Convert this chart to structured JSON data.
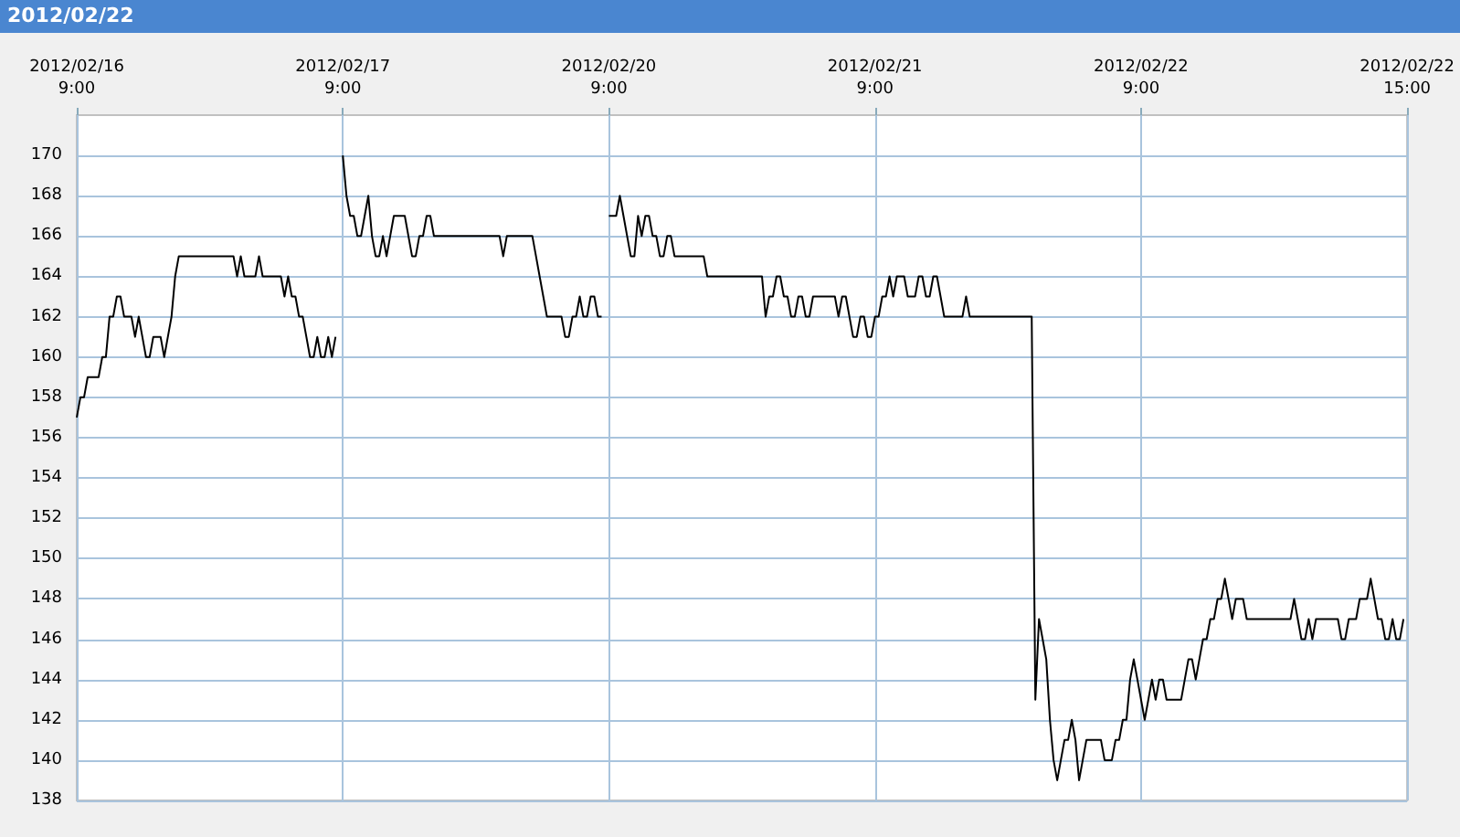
{
  "chart_data": {
    "type": "line",
    "title": "2012/02/22",
    "categories": [
      "2012/02/16\n9:00",
      null,
      null,
      null,
      null,
      null,
      null,
      null,
      null,
      null,
      null,
      null,
      null,
      null,
      null,
      null,
      null,
      null,
      null,
      null,
      null,
      null,
      null,
      null,
      null,
      null,
      null,
      null,
      null,
      null,
      null,
      null,
      null,
      null,
      null,
      null,
      null,
      null,
      null,
      null,
      null,
      null,
      null,
      null,
      null,
      null,
      null,
      null,
      null,
      null,
      null,
      null,
      null,
      null,
      null,
      null,
      null,
      null,
      null,
      null,
      null,
      null,
      null,
      null,
      null,
      null,
      null,
      null,
      null,
      null,
      null,
      null,
      null,
      "2012/02/17\n9:00",
      null,
      null,
      null,
      null,
      null,
      null,
      null,
      null,
      null,
      null,
      null,
      null,
      null,
      null,
      null,
      null,
      null,
      null,
      null,
      null,
      null,
      null,
      null,
      null,
      null,
      null,
      null,
      null,
      null,
      null,
      null,
      null,
      null,
      null,
      null,
      null,
      null,
      null,
      null,
      null,
      null,
      null,
      null,
      null,
      null,
      null,
      null,
      null,
      null,
      null,
      null,
      null,
      null,
      null,
      null,
      null,
      null,
      null,
      null,
      null,
      null,
      null,
      null,
      null,
      null,
      null,
      null,
      null,
      null,
      null,
      null,
      null,
      "2012/02/20\n9:00",
      null,
      null,
      null,
      null,
      null,
      null,
      null,
      null,
      null,
      null,
      null,
      null,
      null,
      null,
      null,
      null,
      null,
      null,
      null,
      null,
      null,
      null,
      null,
      null,
      null,
      null,
      null,
      null,
      null,
      null,
      null,
      null,
      null,
      null,
      null,
      null,
      null,
      null,
      null,
      null,
      null,
      null,
      null,
      null,
      null,
      null,
      null,
      null,
      null,
      null,
      null,
      null,
      null,
      null,
      null,
      null,
      null,
      null,
      null,
      null,
      null,
      null,
      null,
      null,
      null,
      null,
      null,
      null,
      null,
      null,
      null,
      null,
      "2012/02/21\n9:00",
      null,
      null,
      null,
      null,
      null,
      null,
      null,
      null,
      null,
      null,
      null,
      null,
      null,
      null,
      null,
      null,
      null,
      null,
      null,
      null,
      null,
      null,
      null,
      null,
      null,
      null,
      null,
      null,
      null,
      null,
      null,
      null,
      null,
      null,
      null,
      null,
      null,
      null,
      null,
      null,
      null,
      null,
      null,
      null,
      null,
      null,
      null,
      null,
      null,
      null,
      null,
      null,
      null,
      null,
      null,
      null,
      null,
      null,
      null,
      null,
      null,
      null,
      null,
      null,
      null,
      null,
      null,
      null,
      null,
      null,
      null,
      null,
      "2012/02/22\n9:00",
      null,
      null,
      null,
      null,
      null,
      null,
      null,
      null,
      null,
      null,
      null,
      null,
      null,
      null,
      null,
      null,
      null,
      null,
      null,
      null,
      null,
      null,
      null,
      null,
      null,
      null,
      null,
      null,
      null,
      null,
      null,
      null,
      null,
      null,
      null,
      null,
      null,
      null,
      null,
      null,
      null,
      null,
      null,
      null,
      null,
      null,
      null,
      null,
      null,
      null,
      null,
      null,
      null,
      null,
      null,
      null,
      null,
      null,
      null,
      null,
      null,
      null,
      null,
      null,
      null,
      null,
      null,
      null,
      null,
      null,
      null,
      null,
      "2012/02/22\n15:00"
    ],
    "ylim": [
      138,
      172
    ],
    "yticks": [
      138,
      140,
      142,
      144,
      146,
      148,
      150,
      152,
      154,
      156,
      158,
      160,
      162,
      164,
      166,
      168,
      170
    ],
    "grid": true,
    "marker": "none",
    "line_style": "solid",
    "series": [
      {
        "color": "#000000",
        "values": [
          157,
          158,
          158,
          159,
          159,
          159,
          159,
          160,
          160,
          162,
          162,
          163,
          163,
          162,
          162,
          162,
          161,
          162,
          161,
          160,
          160,
          161,
          161,
          161,
          160,
          161,
          162,
          164,
          165,
          165,
          165,
          165,
          165,
          165,
          165,
          165,
          165,
          165,
          165,
          165,
          165,
          165,
          165,
          165,
          164,
          165,
          164,
          164,
          164,
          164,
          165,
          164,
          164,
          164,
          164,
          164,
          164,
          163,
          164,
          163,
          163,
          162,
          162,
          161,
          160,
          160,
          161,
          160,
          160,
          161,
          160,
          161,
          null,
          170,
          168,
          167,
          167,
          166,
          166,
          167,
          168,
          166,
          165,
          165,
          166,
          165,
          166,
          167,
          167,
          167,
          167,
          166,
          165,
          165,
          166,
          166,
          167,
          167,
          166,
          166,
          166,
          166,
          166,
          166,
          166,
          166,
          166,
          166,
          166,
          166,
          166,
          166,
          166,
          166,
          166,
          166,
          166,
          165,
          166,
          166,
          166,
          166,
          166,
          166,
          166,
          166,
          165,
          164,
          163,
          162,
          162,
          162,
          162,
          162,
          161,
          161,
          162,
          162,
          163,
          162,
          162,
          163,
          163,
          162,
          162,
          null,
          167,
          167,
          167,
          168,
          167,
          166,
          165,
          165,
          167,
          166,
          167,
          167,
          166,
          166,
          165,
          165,
          166,
          166,
          165,
          165,
          165,
          165,
          165,
          165,
          165,
          165,
          165,
          164,
          164,
          164,
          164,
          164,
          164,
          164,
          164,
          164,
          164,
          164,
          164,
          164,
          164,
          164,
          164,
          162,
          163,
          163,
          164,
          164,
          163,
          163,
          162,
          162,
          163,
          163,
          162,
          162,
          163,
          163,
          163,
          163,
          163,
          163,
          163,
          162,
          163,
          163,
          162,
          161,
          161,
          162,
          162,
          161,
          161,
          162,
          162,
          163,
          163,
          164,
          163,
          164,
          164,
          164,
          163,
          163,
          163,
          164,
          164,
          163,
          163,
          164,
          164,
          163,
          162,
          162,
          162,
          162,
          162,
          162,
          163,
          162,
          162,
          162,
          162,
          162,
          162,
          162,
          162,
          162,
          162,
          162,
          162,
          162,
          162,
          162,
          162,
          162,
          162,
          143,
          147,
          146,
          145,
          142,
          140,
          139,
          140,
          141,
          141,
          142,
          141,
          139,
          140,
          141,
          141,
          141,
          141,
          141,
          140,
          140,
          140,
          141,
          141,
          142,
          142,
          144,
          145,
          144,
          143,
          142,
          143,
          144,
          143,
          144,
          144,
          143,
          143,
          143,
          143,
          143,
          144,
          145,
          145,
          144,
          145,
          146,
          146,
          147,
          147,
          148,
          148,
          149,
          148,
          147,
          148,
          148,
          148,
          147,
          147,
          147,
          147,
          147,
          147,
          147,
          147,
          147,
          147,
          147,
          147,
          147,
          148,
          147,
          146,
          146,
          147,
          146,
          147,
          147,
          147,
          147,
          147,
          147,
          147,
          146,
          146,
          147,
          147,
          147,
          148,
          148,
          148,
          149,
          148,
          147,
          147,
          146,
          146,
          147,
          146,
          146,
          147,
          null
        ]
      }
    ]
  }
}
